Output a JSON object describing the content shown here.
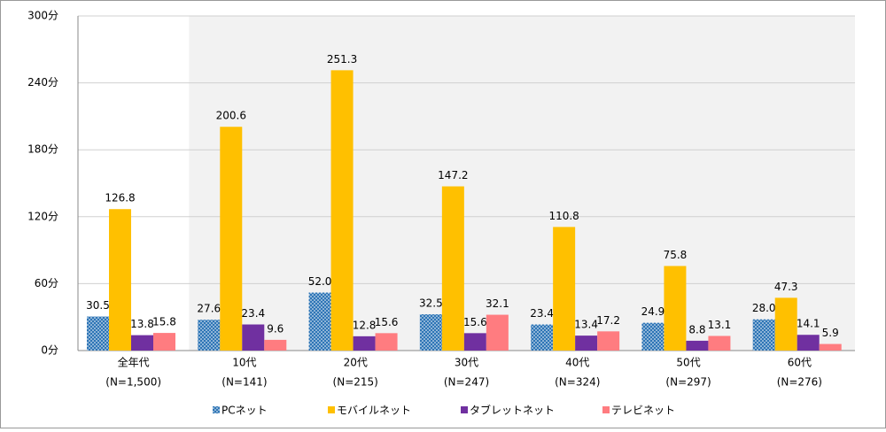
{
  "chart_data": {
    "type": "bar",
    "categories": [
      "全年代",
      "10代",
      "20代",
      "30代",
      "40代",
      "50代",
      "60代"
    ],
    "sample_sizes": [
      "(N=1,500)",
      "(N=141)",
      "(N=215)",
      "(N=247)",
      "(N=324)",
      "(N=297)",
      "(N=276)"
    ],
    "series": [
      {
        "name": "PCネット",
        "color": "#2e75b6",
        "pattern": "dotted",
        "values": [
          30.5,
          27.6,
          52.0,
          32.5,
          23.4,
          24.9,
          28.0
        ],
        "value_labels": [
          "30.5",
          "27.6",
          "52.0",
          "32.5",
          "23.4",
          "24.9",
          "28.0"
        ]
      },
      {
        "name": "モバイルネット",
        "color": "#ffc000",
        "values": [
          126.8,
          200.6,
          251.3,
          147.2,
          110.8,
          75.8,
          47.3
        ],
        "value_labels": [
          "126.8",
          "200.6",
          "251.3",
          "147.2",
          "110.8",
          "75.8",
          "47.3"
        ]
      },
      {
        "name": "タブレットネット",
        "color": "#7030a0",
        "values": [
          13.8,
          23.4,
          12.8,
          15.6,
          13.4,
          8.8,
          14.1
        ],
        "value_labels": [
          "13.8",
          "23.4",
          "12.8",
          "15.6",
          "13.4",
          "8.8",
          "14.1"
        ]
      },
      {
        "name": "テレビネット",
        "color": "#ff7c80",
        "values": [
          15.8,
          9.6,
          15.6,
          32.1,
          17.2,
          13.1,
          5.9
        ],
        "value_labels": [
          "15.8",
          "9.6",
          "15.6",
          "32.1",
          "17.2",
          "13.1",
          "5.9"
        ]
      }
    ],
    "ylim": [
      0,
      300
    ],
    "yticks": [
      {
        "value": 0,
        "label": "0分"
      },
      {
        "value": 60,
        "label": "60分"
      },
      {
        "value": 120,
        "label": "120分"
      },
      {
        "value": 180,
        "label": "180分"
      },
      {
        "value": 240,
        "label": "240分"
      },
      {
        "value": 300,
        "label": "300分"
      }
    ],
    "grid": true,
    "legend": "bottom"
  }
}
